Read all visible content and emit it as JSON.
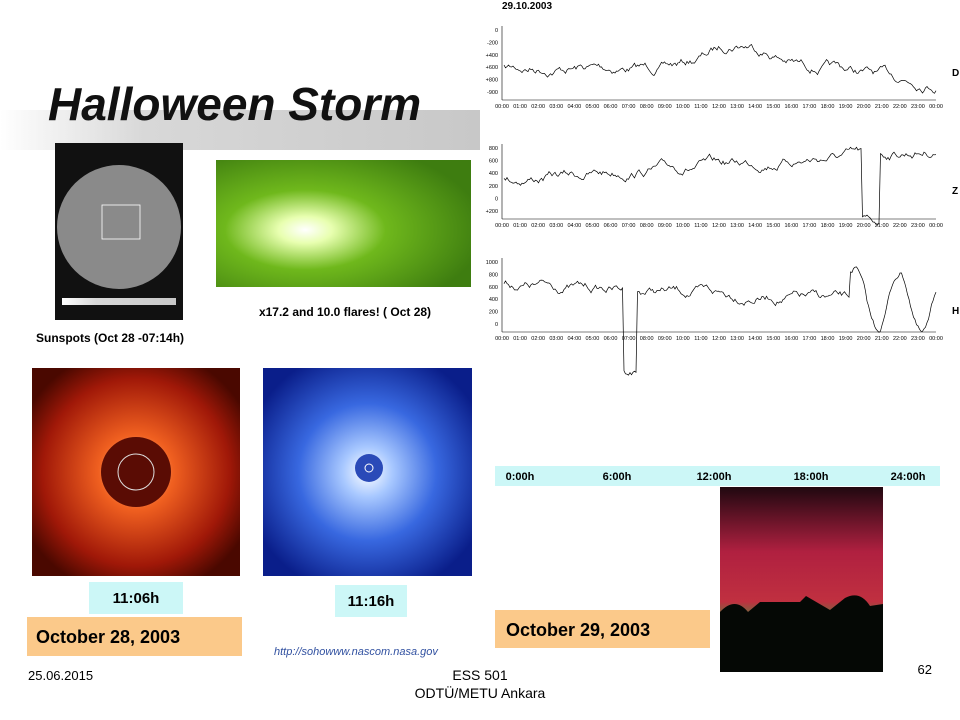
{
  "header": {
    "title": "Halloween Storm"
  },
  "images": {
    "sunspots_caption": "Sunspots (Oct 28 -07:14h)",
    "flare_caption": "x17.2 and 10.0 flares! ( Oct 28)",
    "time_1": "11:06h",
    "time_2": "11:16h",
    "date_1": "October 28, 2003",
    "date_2": "October 29, 2003",
    "source": "http://sohowww.nascom.nasa.gov"
  },
  "magnetogram": {
    "date": "29.10.2003",
    "panels": [
      {
        "label": "D",
        "ticks": [
          "0",
          "-200",
          "+400",
          "+600",
          "+800",
          "-900"
        ]
      },
      {
        "label": "Z",
        "ticks": [
          "800",
          "600",
          "400",
          "200",
          "0",
          "+200"
        ]
      },
      {
        "label": "H",
        "ticks": [
          "1000",
          "800",
          "600",
          "400",
          "200",
          "0"
        ]
      }
    ],
    "times": [
      "00:00",
      "01:00",
      "02:00",
      "03:00",
      "04:00",
      "05:00",
      "06:00",
      "07:00",
      "08:00",
      "09:00",
      "10:00",
      "11:00",
      "12:00",
      "13:00",
      "14:00",
      "15:00",
      "16:00",
      "17:00",
      "18:00",
      "19:00",
      "20:00",
      "21:00",
      "22:00",
      "23:00",
      "00:00"
    ],
    "hours": [
      "0:00h",
      "6:00h",
      "12:00h",
      "18:00h",
      "24:00h"
    ]
  },
  "footer": {
    "date": "25.06.2015",
    "course": "ESS 501",
    "institution": "ODTÜ/METU Ankara",
    "page": "62"
  }
}
